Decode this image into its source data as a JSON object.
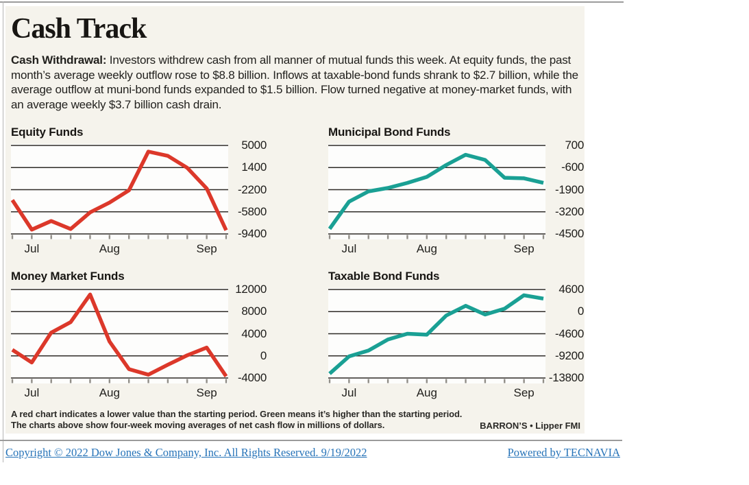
{
  "article": {
    "title": "Cash Track",
    "intro_lead": "Cash Withdrawal:",
    "intro_body": " Investors withdrew cash from all manner of mutual funds this week. At equity funds, the past month’s average weekly outflow rose to $8.8 billion. Inflows at taxable-bond funds shrank to $2.7 billion, while the average outflow at muni-bond funds expanded to $1.5 billion. Flow turned negative at money-market funds, with an average weekly $3.7 billion cash drain."
  },
  "chart_data": [
    {
      "type": "line",
      "title": "Equity Funds",
      "slug": "equity-funds",
      "line_color": "#dc382a",
      "line_color_name": "red",
      "ylim": [
        -9400,
        5000
      ],
      "yticks": [
        5000,
        1400,
        -2200,
        -5800,
        -9400
      ],
      "x_months": [
        {
          "label": "Jul",
          "index": 1
        },
        {
          "label": "Aug",
          "index": 5
        },
        {
          "label": "Sep",
          "index": 10
        }
      ],
      "values": [
        -3900,
        -8700,
        -7300,
        -8600,
        -5900,
        -4300,
        -2300,
        4000,
        3300,
        1350,
        -2000,
        -8800
      ],
      "grid": true,
      "legend": "none",
      "units": "millions of dollars, four-week moving average of net cash flow"
    },
    {
      "type": "line",
      "title": "Municipal Bond Funds",
      "slug": "municipal-bond-funds",
      "line_color": "#1aa094",
      "line_color_name": "green",
      "ylim": [
        -4500,
        700
      ],
      "yticks": [
        700,
        -600,
        -1900,
        -3200,
        -4500
      ],
      "x_months": [
        {
          "label": "Jul",
          "index": 1
        },
        {
          "label": "Aug",
          "index": 5
        },
        {
          "label": "Sep",
          "index": 10
        }
      ],
      "values": [
        -4200,
        -2600,
        -2000,
        -1800,
        -1500,
        -1150,
        -450,
        150,
        -150,
        -1200,
        -1230,
        -1500
      ],
      "grid": true,
      "legend": "none",
      "units": "millions of dollars, four-week moving average of net cash flow"
    },
    {
      "type": "line",
      "title": "Money Market Funds",
      "slug": "money-market-funds",
      "line_color": "#dc382a",
      "line_color_name": "red",
      "ylim": [
        -4000,
        12000
      ],
      "yticks": [
        12000,
        8000,
        4000,
        0,
        -4000
      ],
      "x_months": [
        {
          "label": "Jul",
          "index": 1
        },
        {
          "label": "Aug",
          "index": 5
        },
        {
          "label": "Sep",
          "index": 10
        }
      ],
      "values": [
        1100,
        -1200,
        4200,
        6100,
        11100,
        2600,
        -2400,
        -3400,
        -1600,
        100,
        1500,
        -3700
      ],
      "grid": true,
      "legend": "none",
      "units": "millions of dollars, four-week moving average of net cash flow"
    },
    {
      "type": "line",
      "title": "Taxable Bond Funds",
      "slug": "taxable-bond-funds",
      "line_color": "#1aa094",
      "line_color_name": "green",
      "ylim": [
        -13800,
        4600
      ],
      "yticks": [
        4600,
        0,
        -4600,
        -9200,
        -13800
      ],
      "x_months": [
        {
          "label": "Jul",
          "index": 1
        },
        {
          "label": "Aug",
          "index": 5
        },
        {
          "label": "Sep",
          "index": 10
        }
      ],
      "values": [
        -12900,
        -9300,
        -8100,
        -5800,
        -4600,
        -4800,
        -800,
        1200,
        -600,
        600,
        3400,
        2700
      ],
      "grid": true,
      "legend": "none",
      "units": "millions of dollars, four-week moving average of net cash flow"
    }
  ],
  "footnote": {
    "line1": "A red chart indicates a lower value than the starting period. Green means it’s higher than the starting period.",
    "line2": "The charts above show four-week moving averages of net cash flow in millions of dollars.",
    "credit": "BARRON’S • Lipper FMI"
  },
  "links": {
    "copyright": "Copyright © 2022 Dow Jones & Company, Inc. All Rights Reserved. 9/19/2022",
    "powered_by": "Powered by TECNAVIA"
  },
  "colors": {
    "red": "#dc382a",
    "green": "#1aa094",
    "panel_background": "#f5f3ec",
    "gridline": "#2e2b27",
    "link_blue": "#2673b8"
  }
}
